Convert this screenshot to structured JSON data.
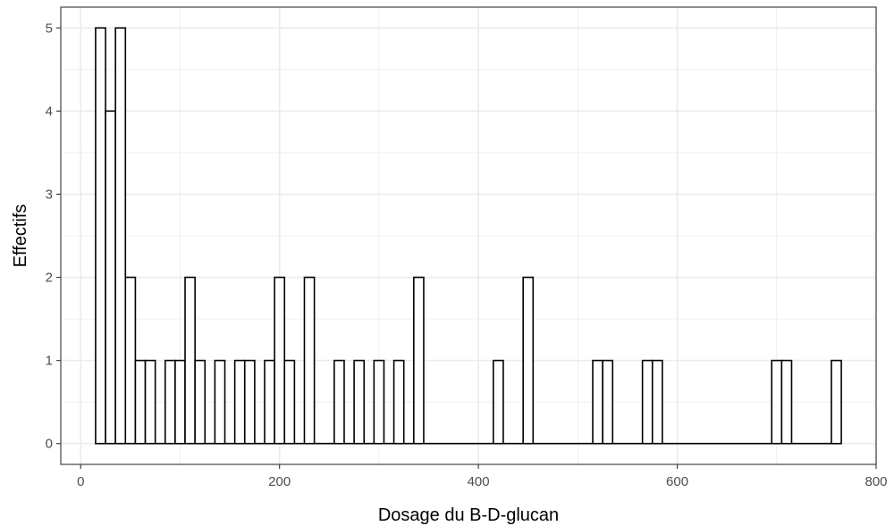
{
  "chart_data": {
    "type": "bar",
    "subtype": "histogram",
    "title": "",
    "xlabel": "Dosage du B-D-glucan",
    "ylabel": "Effectifs",
    "xlim": [
      -20,
      800
    ],
    "ylim": [
      -0.25,
      5.25
    ],
    "x_ticks": [
      0,
      200,
      400,
      600,
      800
    ],
    "y_ticks": [
      0,
      1,
      2,
      3,
      4,
      5
    ],
    "bin_width": 10,
    "grid": true,
    "colors": {
      "fill": "#ffffff",
      "outline": "#000000",
      "grid": "#ebebeb",
      "panel_border": "#333333"
    },
    "bins": [
      {
        "start": 15,
        "end": 25,
        "count": 5
      },
      {
        "start": 25,
        "end": 35,
        "count": 4
      },
      {
        "start": 35,
        "end": 45,
        "count": 5
      },
      {
        "start": 45,
        "end": 55,
        "count": 2
      },
      {
        "start": 55,
        "end": 65,
        "count": 1
      },
      {
        "start": 65,
        "end": 75,
        "count": 1
      },
      {
        "start": 85,
        "end": 95,
        "count": 1
      },
      {
        "start": 95,
        "end": 105,
        "count": 1
      },
      {
        "start": 105,
        "end": 115,
        "count": 2
      },
      {
        "start": 115,
        "end": 125,
        "count": 1
      },
      {
        "start": 135,
        "end": 145,
        "count": 1
      },
      {
        "start": 155,
        "end": 165,
        "count": 1
      },
      {
        "start": 165,
        "end": 175,
        "count": 1
      },
      {
        "start": 185,
        "end": 195,
        "count": 1
      },
      {
        "start": 195,
        "end": 205,
        "count": 2
      },
      {
        "start": 205,
        "end": 215,
        "count": 1
      },
      {
        "start": 225,
        "end": 235,
        "count": 2
      },
      {
        "start": 255,
        "end": 265,
        "count": 1
      },
      {
        "start": 275,
        "end": 285,
        "count": 1
      },
      {
        "start": 295,
        "end": 305,
        "count": 1
      },
      {
        "start": 315,
        "end": 325,
        "count": 1
      },
      {
        "start": 335,
        "end": 345,
        "count": 2
      },
      {
        "start": 415,
        "end": 425,
        "count": 1
      },
      {
        "start": 445,
        "end": 455,
        "count": 2
      },
      {
        "start": 515,
        "end": 525,
        "count": 1
      },
      {
        "start": 525,
        "end": 535,
        "count": 1
      },
      {
        "start": 565,
        "end": 575,
        "count": 1
      },
      {
        "start": 575,
        "end": 585,
        "count": 1
      },
      {
        "start": 695,
        "end": 705,
        "count": 1
      },
      {
        "start": 705,
        "end": 715,
        "count": 1
      },
      {
        "start": 755,
        "end": 765,
        "count": 1
      }
    ],
    "baseline_range": [
      15,
      765
    ]
  }
}
